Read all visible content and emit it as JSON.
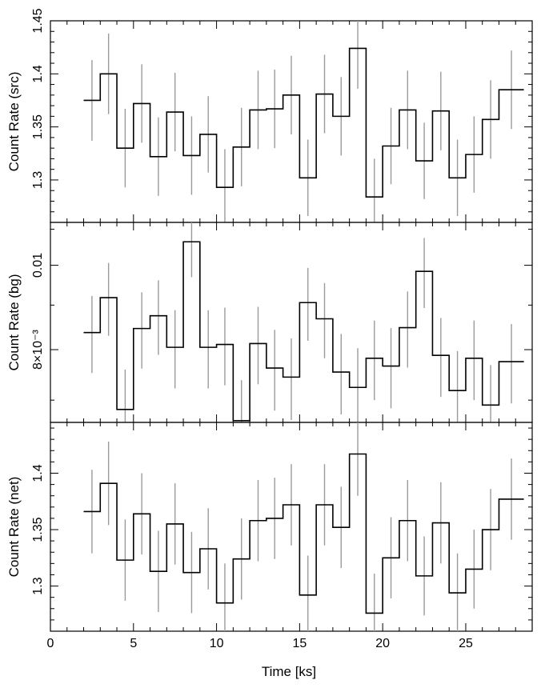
{
  "chart_data": {
    "type": "line",
    "style": "step-histogram-with-error-bars",
    "shared_x": {
      "label": "Time [ks]",
      "range": [
        0,
        29
      ],
      "ticks": [
        0,
        5,
        10,
        15,
        20,
        25
      ],
      "tick_labels": [
        "0",
        "5",
        "10",
        "15",
        "20",
        "25"
      ],
      "bin_edges": [
        2,
        3,
        4,
        5,
        6,
        7,
        8,
        9,
        10,
        11,
        12,
        13,
        14,
        15,
        16,
        17,
        18,
        19,
        20,
        21,
        22,
        23,
        24,
        25,
        26,
        27,
        28.5
      ]
    },
    "error_bar_color": "#9a9a9a",
    "line_color": "#000000",
    "panels": [
      {
        "id": "src",
        "ylabel": "Count Rate (src)",
        "scale": "linear",
        "ylim": [
          1.26,
          1.45
        ],
        "ticks": [
          1.3,
          1.35,
          1.4,
          1.45
        ],
        "tick_labels": [
          "1.3",
          "1.35",
          "1.4",
          "1.45"
        ],
        "values": [
          1.375,
          1.4,
          1.33,
          1.372,
          1.322,
          1.364,
          1.323,
          1.343,
          1.293,
          1.331,
          1.366,
          1.367,
          1.38,
          1.302,
          1.381,
          1.36,
          1.424,
          1.284,
          1.332,
          1.366,
          1.318,
          1.365,
          1.302,
          1.324,
          1.357,
          1.385
        ],
        "errors": [
          0.038,
          0.038,
          0.037,
          0.037,
          0.037,
          0.037,
          0.037,
          0.036,
          0.036,
          0.037,
          0.037,
          0.037,
          0.037,
          0.036,
          0.037,
          0.037,
          0.038,
          0.036,
          0.036,
          0.037,
          0.036,
          0.037,
          0.036,
          0.036,
          0.037,
          0.037
        ]
      },
      {
        "id": "bg",
        "ylabel": "Count Rate (bg)",
        "scale": "log",
        "ylim": [
          0.0066,
          0.0112
        ],
        "ticks": [
          0.008,
          0.01
        ],
        "tick_labels": [
          "8×10⁻³",
          "0.01"
        ],
        "values": [
          0.00837,
          0.00918,
          0.00683,
          0.00846,
          0.00875,
          0.00805,
          0.01064,
          0.00805,
          0.00811,
          0.00663,
          0.00813,
          0.00762,
          0.00744,
          0.00906,
          0.00868,
          0.00754,
          0.00724,
          0.00782,
          0.00766,
          0.00848,
          0.00984,
          0.00788,
          0.00718,
          0.00782,
          0.00691,
          0.00775
        ],
        "errors": [
          0.00085,
          0.00088,
          0.00076,
          0.00085,
          0.00086,
          0.00083,
          0.00095,
          0.00083,
          0.00083,
          0.00075,
          0.00083,
          0.00081,
          0.0008,
          0.00087,
          0.00086,
          0.0008,
          0.00079,
          0.00082,
          0.00081,
          0.00085,
          0.00091,
          0.00082,
          0.00079,
          0.00082,
          0.00077,
          0.00081
        ]
      },
      {
        "id": "net",
        "ylabel": "Count Rate (net)",
        "scale": "linear",
        "ylim": [
          1.26,
          1.445
        ],
        "ticks": [
          1.3,
          1.35,
          1.4
        ],
        "tick_labels": [
          "1.3",
          "1.35",
          "1.4"
        ],
        "values": [
          1.366,
          1.391,
          1.323,
          1.364,
          1.313,
          1.355,
          1.312,
          1.333,
          1.285,
          1.324,
          1.358,
          1.36,
          1.372,
          1.292,
          1.372,
          1.352,
          1.417,
          1.276,
          1.325,
          1.358,
          1.309,
          1.356,
          1.294,
          1.315,
          1.35,
          1.377
        ],
        "errors": [
          0.037,
          0.037,
          0.036,
          0.036,
          0.036,
          0.036,
          0.036,
          0.036,
          0.035,
          0.036,
          0.036,
          0.036,
          0.036,
          0.035,
          0.036,
          0.036,
          0.037,
          0.035,
          0.036,
          0.036,
          0.035,
          0.036,
          0.035,
          0.035,
          0.036,
          0.036
        ]
      }
    ]
  }
}
